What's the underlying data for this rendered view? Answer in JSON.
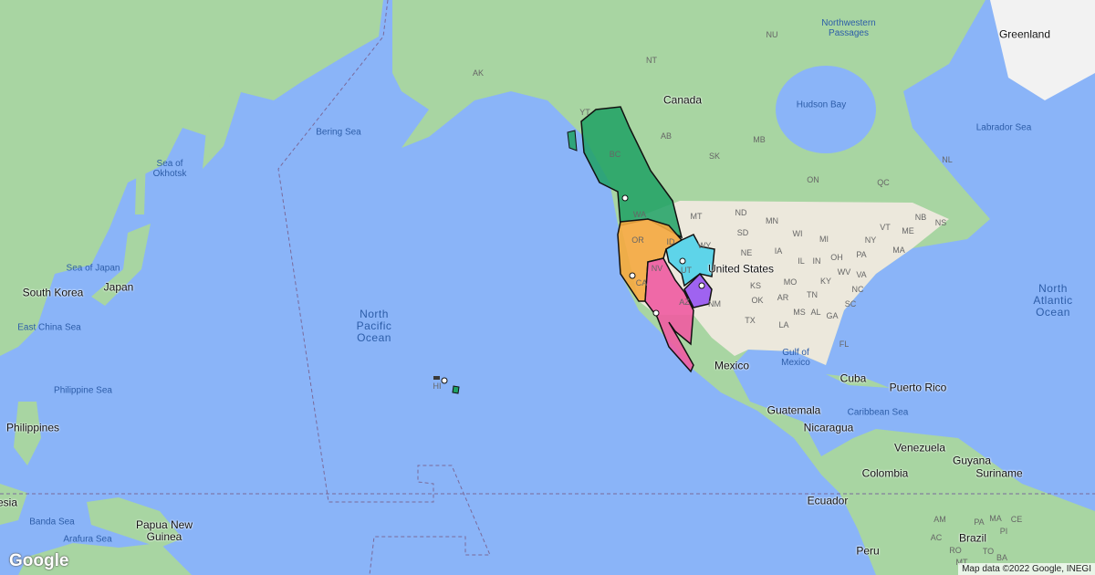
{
  "map": {
    "attribution": "Map data ©2022 Google, INEGI",
    "logo": "Google",
    "colors": {
      "water": "#8ab4f8",
      "land": "#a8d5a2",
      "usa_land": "#ece8dc",
      "region_green": "#1fa164",
      "region_orange": "#f5a93f",
      "region_pink": "#ef5ba1",
      "region_cyan": "#4fd2ea",
      "region_purple": "#9b5cf0"
    },
    "regions": [
      {
        "name": "green",
        "states": [
          "BC",
          "WA"
        ]
      },
      {
        "name": "orange",
        "states": [
          "OR",
          "ID",
          "CA"
        ]
      },
      {
        "name": "pink",
        "states": [
          "NV",
          "AZ"
        ]
      },
      {
        "name": "cyan",
        "states": [
          "WY",
          "UT"
        ]
      },
      {
        "name": "purple",
        "states": [
          "NM"
        ]
      }
    ],
    "marker_icon": "star-marker",
    "labels": {
      "countries": [
        "Canada",
        "United States",
        "Mexico",
        "Greenland",
        "South Korea",
        "Japan",
        "Philippines",
        "Guatemala",
        "Nicaragua",
        "Cuba",
        "Puerto Rico",
        "Venezuela",
        "Guyana",
        "Suriname",
        "Colombia",
        "Ecuador",
        "Peru",
        "Brazil",
        "Papua New Guinea",
        "esia"
      ],
      "waters": [
        "Northwestern Passages",
        "Hudson Bay",
        "Labrador Sea",
        "Bering Sea",
        "Sea of Okhotsk",
        "Sea of Japan",
        "East China Sea",
        "Philippine Sea",
        "Gulf of Mexico",
        "Caribbean Sea",
        "Banda Sea",
        "Arafura Sea"
      ],
      "oceans": [
        "North Pacific Ocean",
        "North Atlantic Ocean"
      ],
      "states": [
        "AK",
        "YT",
        "NT",
        "NU",
        "BC",
        "AB",
        "SK",
        "MB",
        "ON",
        "QC",
        "NL",
        "NB",
        "NS",
        "WA",
        "OR",
        "ID",
        "MT",
        "WY",
        "NV",
        "UT",
        "CA",
        "AZ",
        "NM",
        "ND",
        "SD",
        "NE",
        "KS",
        "OK",
        "TX",
        "MN",
        "IA",
        "MO",
        "AR",
        "LA",
        "WI",
        "IL",
        "MI",
        "IN",
        "OH",
        "KY",
        "TN",
        "MS",
        "AL",
        "GA",
        "FL",
        "SC",
        "NC",
        "VA",
        "WV",
        "PA",
        "NY",
        "VT",
        "ME",
        "MA",
        "HI",
        "AM",
        "PA",
        "AC",
        "RO",
        "MT",
        "TO",
        "MA",
        "PI",
        "CE",
        "BA"
      ]
    }
  }
}
